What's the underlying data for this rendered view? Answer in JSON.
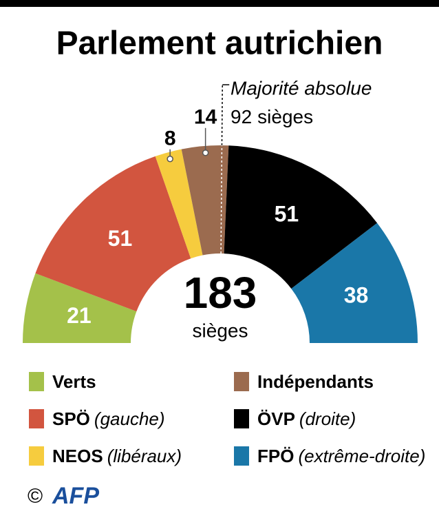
{
  "chart_data": {
    "type": "semicircle",
    "title": "Parlement autrichien",
    "total": 183,
    "total_unit": "sièges",
    "majority": {
      "label": "Majorité absolue",
      "value": 92,
      "unit": "sièges"
    },
    "series": [
      {
        "name": "Verts",
        "color": "#a4c14a",
        "value": 21
      },
      {
        "name": "SPÖ",
        "note": "(gauche)",
        "color": "#d2553f",
        "value": 51
      },
      {
        "name": "NEOS",
        "note": "(libéraux)",
        "color": "#f6cc3e",
        "value": 8
      },
      {
        "name": "Indépendants",
        "color": "#9b6b4f",
        "value": 14
      },
      {
        "name": "ÖVP",
        "note": "(droite)",
        "color": "#000000",
        "value": 51
      },
      {
        "name": "FPÖ",
        "note": "(extrême-droite)",
        "color": "#1a77a8",
        "value": 38
      }
    ],
    "copyright": "©",
    "source": "AFP"
  }
}
